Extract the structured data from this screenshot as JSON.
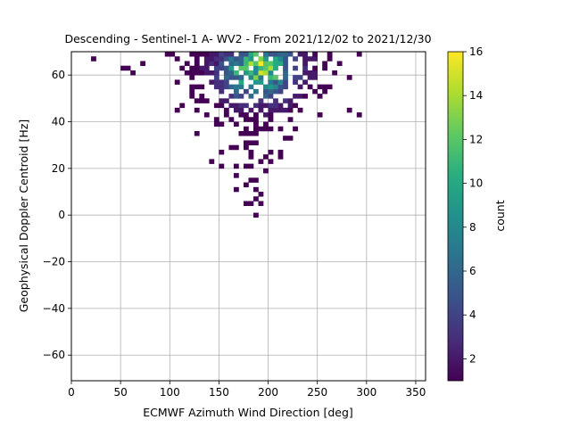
{
  "chart_data": {
    "type": "heatmap",
    "title": "Descending - Sentinel-1 A- WV2 - From 2021/12/02 to 2021/12/30",
    "xlabel": "ECMWF Azimuth Wind Direction [deg]",
    "ylabel": "Geophysical Doppler Centroid [Hz]",
    "xlim": [
      0,
      360
    ],
    "ylim": [
      -71,
      70
    ],
    "xticks": [
      0,
      50,
      100,
      150,
      200,
      250,
      300,
      350
    ],
    "yticks": [
      -60,
      -40,
      -20,
      0,
      20,
      40,
      60
    ],
    "grid": true,
    "colorbar": {
      "label": "count",
      "min": 1,
      "max": 16,
      "ticks": [
        2,
        4,
        6,
        8,
        10,
        12,
        14,
        16
      ],
      "colormap": "viridis"
    },
    "bin_size": {
      "x": 5,
      "y": 2
    },
    "distribution": {
      "x_center": 185,
      "x_spread_at_top": 90,
      "x_spread_at_bottom": 18,
      "y_min": 0,
      "y_max": 70,
      "peak_x": 190,
      "peak_y": 62,
      "peak_count": 16
    }
  }
}
